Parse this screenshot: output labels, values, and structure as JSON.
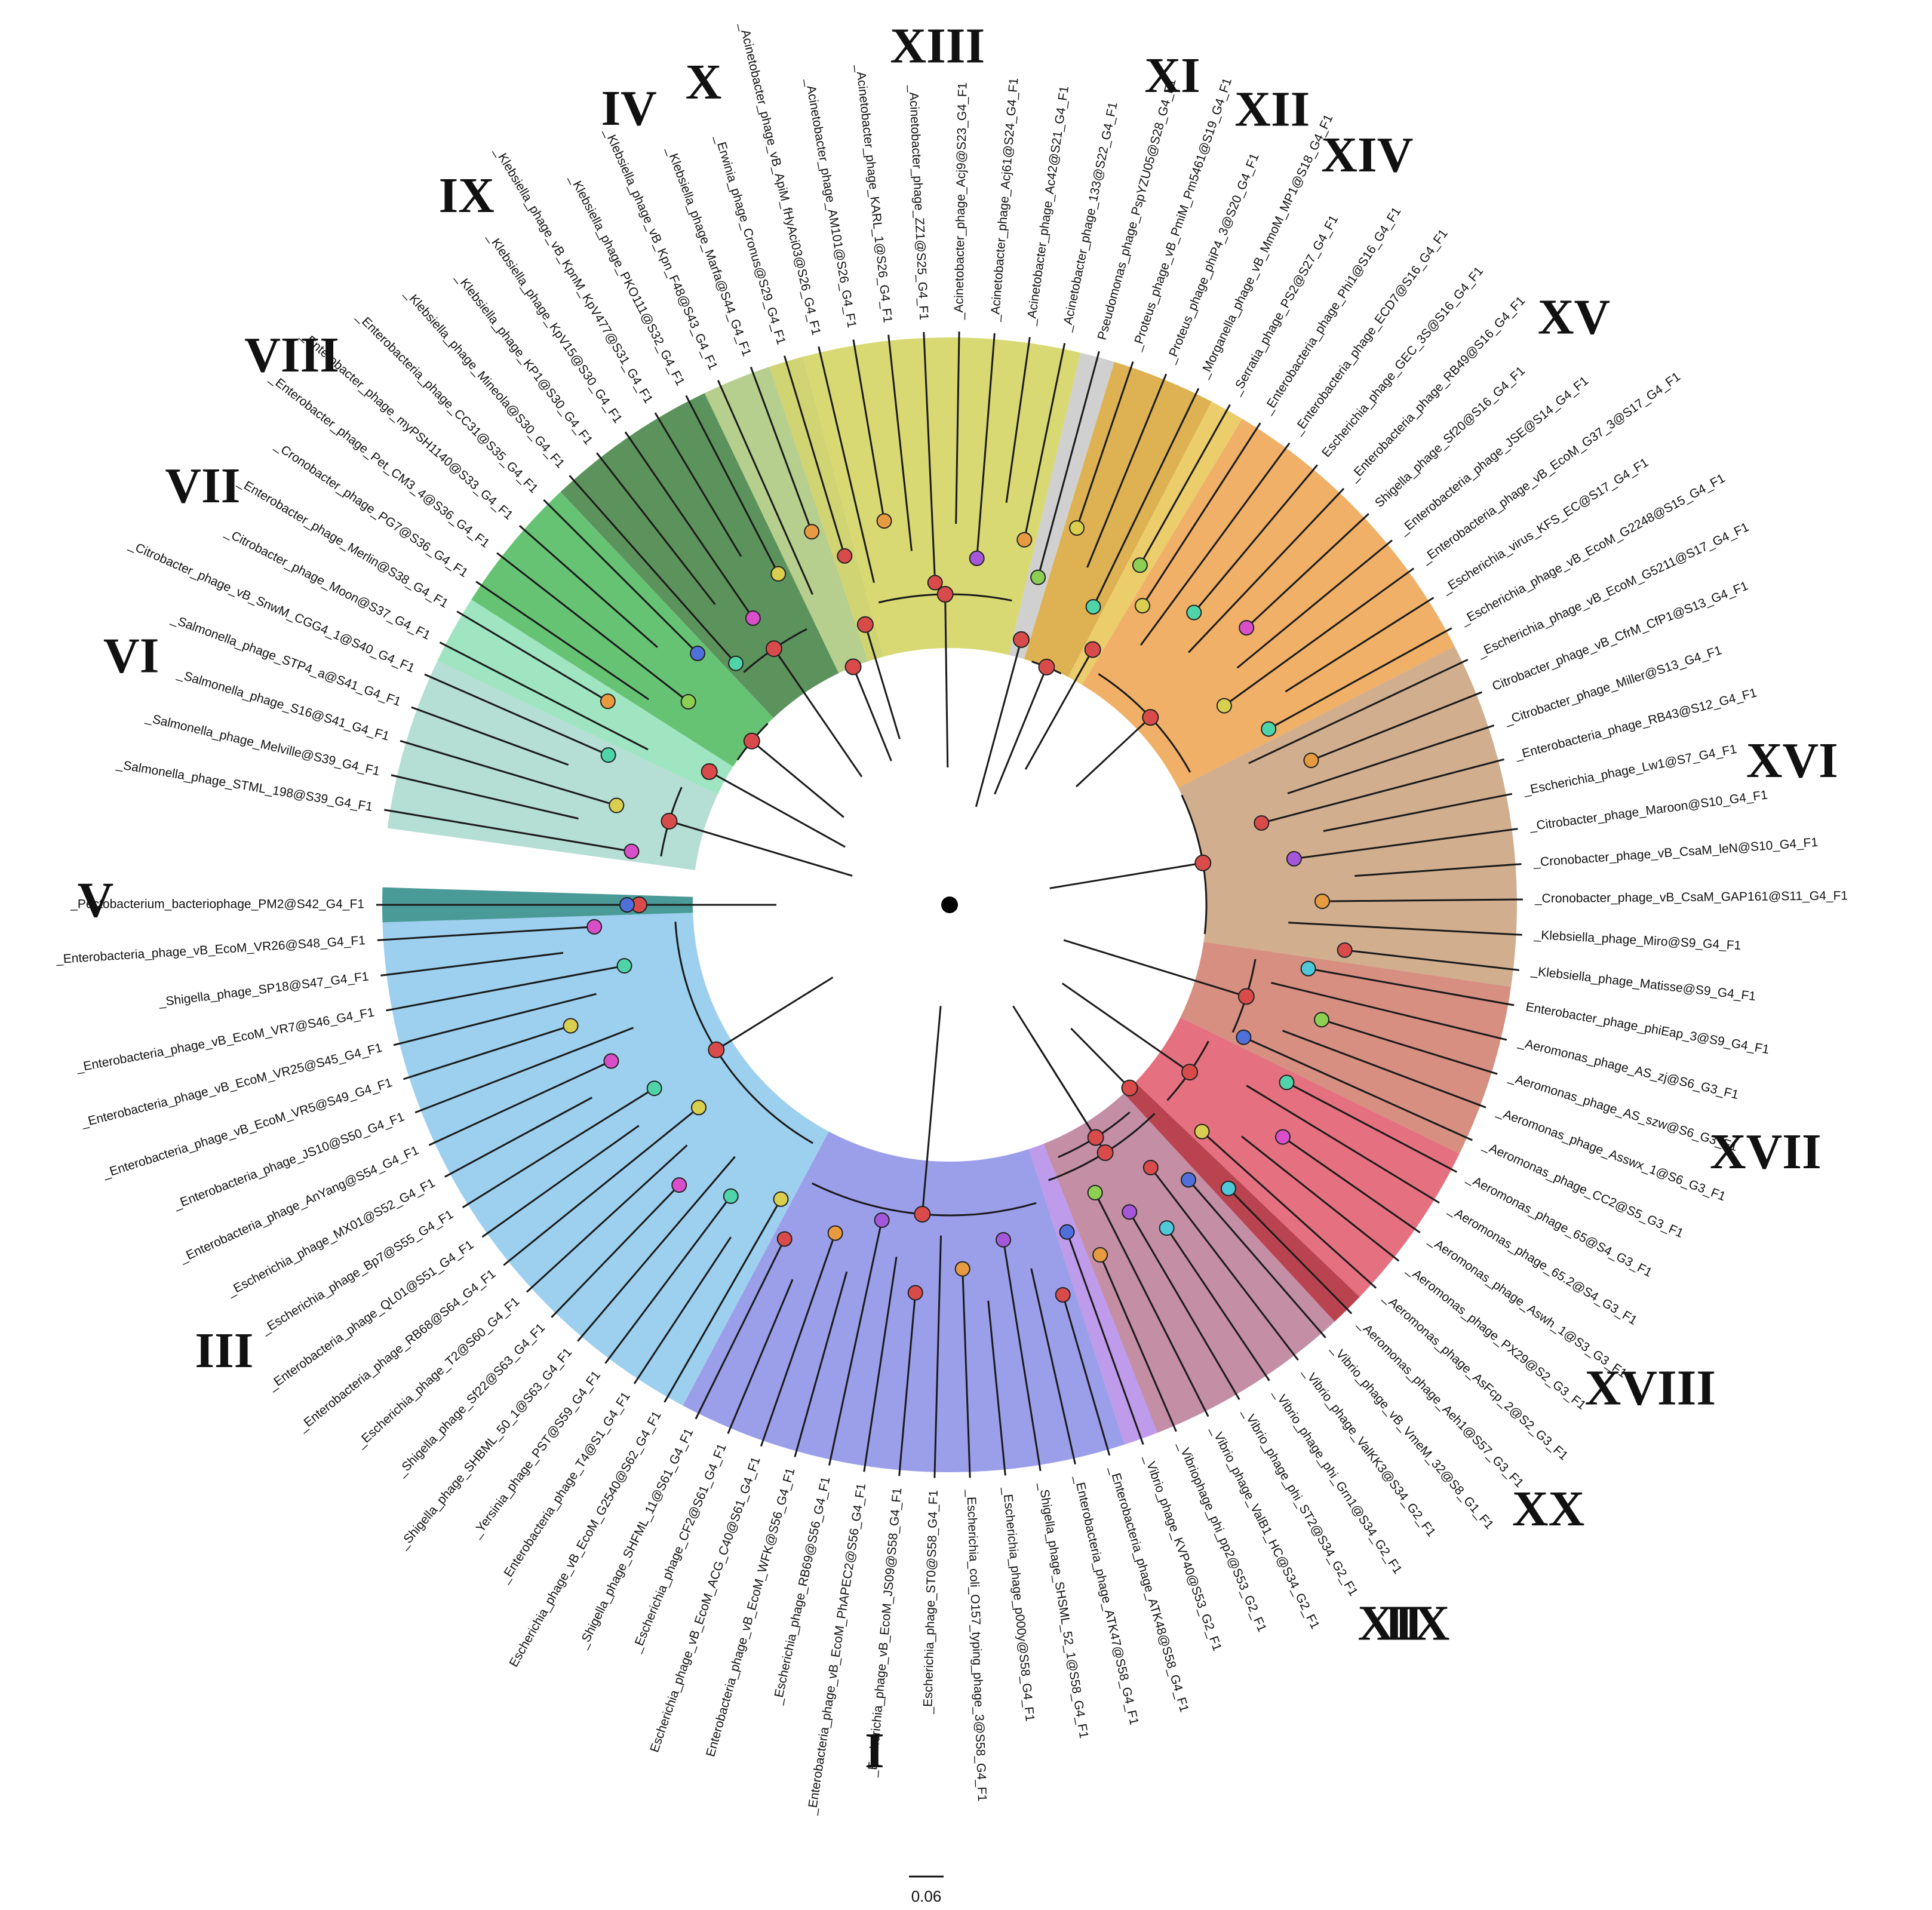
{
  "colors": {
    "I": "#8a8ee6",
    "II": "#b48ae8",
    "III": "#8cc8ec",
    "IV": "#a9c77a",
    "V": "#2a8a86",
    "VI": "#a8d8cc",
    "VII": "#8ee0b6",
    "VIII": "#4cb85c",
    "IX": "#3f7f3f",
    "X": "#c8cc5a",
    "XI": "#c8c8c8",
    "XII": "#d8a535",
    "XIII": "#d2d25a",
    "XIV": "#e7c452",
    "XV": "#eda24c",
    "XVI": "#c9a07a",
    "XVII": "#cf7b6b",
    "XVIII": "#e0586a",
    "XIX": "#c48c98",
    "XX": "#b73535",
    "node_red": "#d94b4b",
    "node_green": "#8ccf52",
    "node_teal": "#4fd3a8",
    "node_purple": "#a457d9",
    "node_blue": "#4f6fd9",
    "node_magenta": "#d94fc9",
    "node_orange": "#e79a3f",
    "node_cyan": "#4fc8d9",
    "node_yellow": "#d9cf4f",
    "root": "#000000",
    "branch": "#1a1a1a"
  },
  "leaves": [
    "_Pectobacterium_bacteriophage_PM2@S42_G4_F1",
    "_Enterobacteria_phage_vB_EcoM_VR26@S48_G4_F1",
    "_Shigella_phage_SP18@S47_G4_F1",
    "_Enterobacteria_phage_vB_EcoM_VR7@S46_G4_F1",
    "_Enterobacteria_phage_vB_EcoM_VR25@S45_G4_F1",
    "_Enterobacteria_phage_vB_EcoM_VR5@S49_G4_F1",
    "_Enterobacteria_phage_JS10@S50_G4_F1",
    "_Enterobacteria_phage_AnYang@S54_G4_F1",
    "_Escherichia_phage_MX01@S52_G4_F1",
    "_Escherichia_phage_Bp7@S55_G4_F1",
    "_Enterobacteria_phage_QL01@S51_G4_F1",
    "_Enterobacteria_phage_RB68@S64_G4_F1",
    "_Escherichia_phage_T2@S60_G4_F1",
    "_Shigella_phage_Sf22@S63_G4_F1",
    "_Shigella_phage_SHBML_50_1@S63_G4_F1",
    "_Yersinia_phage_PST@S59_G4_F1",
    "_Enterobacteria_phage_T4@S1_G4_F1",
    "Escherichia_phage_vB_EcoM_G2540@S62_G4_F1",
    "_Shigella_phage_SHFML_11@S61_G4_F1",
    "_Escherichia_phage_CF2@S61_G4_F1",
    "Escherichia_phage_vB_EcoM_ACG_C40@S61_G4_F1",
    "Enterobacteria_phage_vB_EcoM_WFK@S56_G4_F1",
    "_Escherichia_phage_RB69@S56_G4_F1",
    "_Enterobacteria_phage_vB_EcoM_PhAPEC2@S56_G4_F1",
    "_Escherichia_phage_vB_EcoM_JS09@S58_G4_F1",
    "_Escherichia_phage_ST0@S58_G4_F1",
    "_Escherichia_coli_O157_typing_phage_3@S58_G4_F1",
    "_Escherichia_phage_p000y@S58_G4_F1",
    "_Shigella_phage_SHSML_52_1@S58_G4_F1",
    "_Enterobacteria_phage_ATK47@S58_G4_F1",
    "_Enterobacteria_phage_ATK48@S58_G4_F1",
    "_Vibrio_phage_KVP40@S53_G2_F1",
    "_Vibriophage_phi_pp2@S53_G2_F1",
    "_Vibrio_phage_ValB1_HC@S34_G2_F1",
    "_Vibrio_phage_phi_ST2@S34_G2_F1",
    "_Vibrio_phage_phi_Grn1@S34_G2_F1",
    "_Vibrio_phage_ValKK3@S34_G2_F1",
    "_Vibrio_phage_vB_VmeM_32@S8_G1_F1",
    "_Aeromonas_phage_Aeh1@S57_G3_F1",
    "_Aeromonas_phage_AsFcp_2@S2_G3_F1",
    "_Aeromonas_phage_PX29@S2_G3_F1",
    "_Aeromonas_phage_Aswh_1@S3_G3_F1",
    "_Aeromonas_phage_65.2@S4_G3_F1",
    "_Aeromonas_phage_65@S4_G3_F1",
    "_Aeromonas_phage_CC2@S5_G3_F1",
    "_Aeromonas_phage_Asswx_1@S6_G3_F1",
    "_Aeromonas_phage_AS_szw@S6_G3_F1",
    "_Aeromonas_phage_AS_zj@S6_G3_F1",
    "Enterobacter_phage_phiEap_3@S9_G4_F1",
    "_Klebsiella_phage_Matisse@S9_G4_F1",
    "_Klebsiella_phage_Miro@S9_G4_F1",
    "_Cronobacter_phage_vB_CsaM_GAP161@S11_G4_F1",
    "_Cronobacter_phage_vB_CsaM_leN@S10_G4_F1",
    "_Citrobacter_phage_Maroon@S10_G4_F1",
    "_Escherichia_phage_Lw1@S7_G4_F1",
    "_Enterobacteria_phage_RB43@S12_G4_F1",
    "_Citrobacter_phage_Miller@S13_G4_F1",
    "Citrobacter_phage_vB_CfrM_CfP1@S13_G4_F1",
    "_Escherichia_phage_vB_EcoM_G5211@S17_G4_F1",
    "_Escherichia_phage_vB_EcoM_G2248@S15_G4_F1",
    "_Escherichia_virus_KFS_EC@S17_G4_F1",
    "_Enterobacteria_phage_vB_EcoM_G37_3@S17_G4_F1",
    "_Enterobacteria_phage_JSE@S14_G4_F1",
    "Shigella_phage_Sf20@S16_G4_F1",
    "_Enterobacteria_phage_RB49@S16_G4_F1",
    "Escherichia_phage_GEC_3S@S16_G4_F1",
    "_Enterobacteria_phage_ECD7@S16_G4_F1",
    "_Enterobacteria_phage_Phi1@S16_G4_F1",
    "_Serratia_phage_PS2@S27_G4_F1",
    "_Morganella_phage_vB_MmoM_MP1@S18_G4_F1",
    "_Proteus_phage_phiP4_3@S20_G4_F1",
    "_Proteus_phage_vB_PmiM_Pm5461@S19_G4_F1",
    "Pseudomonas_phage_PspYZU05@S28_G4_F1",
    "_Acinetobacter_phage_133@S22_G4_F1",
    "_Acinetobacter_phage_Ac42@S21_G4_F1",
    "_Acinetobacter_phage_Acj61@S24_G4_F1",
    "_Acinetobacter_phage_Acj9@S23_G4_F1",
    "_Acinetobacter_phage_ZZ1@S25_G4_F1",
    "_Acinetobacter_phage_KARL_1@S26_G4_F1",
    "_Acinetobacter_phage_AM101@S26_G4_F1",
    "_Acinetobacter_phage_vB_ApiM_fHyAci03@S26_G4_F1",
    "_Erwinia_phage_Cronus@S29_G4_F1",
    "_Klebsiella_phage_Marfa@S44_G4_F1",
    "_Klebsiella_phage_vB_Kpn_F48@S43_G4_F1",
    "_Klebsiella_phage_PKO111@S32_G4_F1",
    "_Klebsiella_phage_vB_KpnM_KpV477@S31_G4_F1",
    "_Klebsiella_phage_KpV15@S30_G4_F1",
    "_Klebsiella_phage_KP1@S30_G4_F1",
    "_Klebsiella_phage_Mineola@S30_G4_F1",
    "_Enterobacteria_phage_CC31@S35_G4_F1",
    "_Enterobacter_phage_myPSH1140@S33_G4_F1",
    "_Enterobacter_phage_Pet_CM3_4@S36_G4_F1",
    "_Cronobacter_phage_PG7@S36_G4_F1",
    "_Enterobacter_phage_Merlin@S38_G4_F1",
    "_Citrobacter_phage_Moon@S37_G4_F1",
    "_Citrobacter_phage_vB_SnwM_CGG4_1@S40_G4_F1",
    "_Salmonella_phage_STP4_a@S41_G4_F1",
    "_Salmonella_phage_S16@S41_G4_F1",
    "_Salmonella_phage_Melville@S39_G4_F1",
    "_Salmonella_phage_STML_198@S39_G4_F1"
  ],
  "clades": [
    {
      "label": "I",
      "color": "#8a8ee6",
      "start": 18,
      "end": 30
    },
    {
      "label": "II",
      "color": "#b48ae8",
      "start": 31,
      "end": 38
    },
    {
      "label": "III",
      "color": "#8cc8ec",
      "start": 1,
      "end": 17
    },
    {
      "label": "IV",
      "color": "#a9c77a",
      "start": 82,
      "end": 83
    },
    {
      "label": "V",
      "color": "#2a8a86",
      "start": 0,
      "end": 0
    },
    {
      "label": "VI",
      "color": "#a8d8cc",
      "start": 95,
      "end": 99
    },
    {
      "label": "VII",
      "color": "#8ee0b6",
      "start": 93,
      "end": 94
    },
    {
      "label": "VIII",
      "color": "#4cb85c",
      "start": 89,
      "end": 92
    },
    {
      "label": "IX",
      "color": "#3f7f3f",
      "start": 84,
      "end": 88
    },
    {
      "label": "X",
      "color": "#c8cc5a",
      "start": 81,
      "end": 81
    },
    {
      "label": "XI",
      "color": "#c8c8c8",
      "start": 72,
      "end": 72
    },
    {
      "label": "XII",
      "color": "#d8a535",
      "start": 69,
      "end": 71
    },
    {
      "label": "XIII",
      "color": "#d2d25a",
      "start": 73,
      "end": 80
    },
    {
      "label": "XIV",
      "color": "#e7c452",
      "start": 68,
      "end": 68
    },
    {
      "label": "XV",
      "color": "#eda24c",
      "start": 59,
      "end": 67
    },
    {
      "label": "XVI",
      "color": "#c9a07a",
      "start": 49,
      "end": 58
    },
    {
      "label": "XVII",
      "color": "#cf7b6b",
      "start": 44,
      "end": 48
    },
    {
      "label": "XVIII",
      "color": "#e0586a",
      "start": 39,
      "end": 43
    },
    {
      "label": "XIX",
      "color": "#c48c98",
      "start": 32,
      "end": 37
    },
    {
      "label": "XX",
      "color": "#b73535",
      "start": 38,
      "end": 38
    }
  ],
  "scale_bar": {
    "label": "0.06"
  }
}
